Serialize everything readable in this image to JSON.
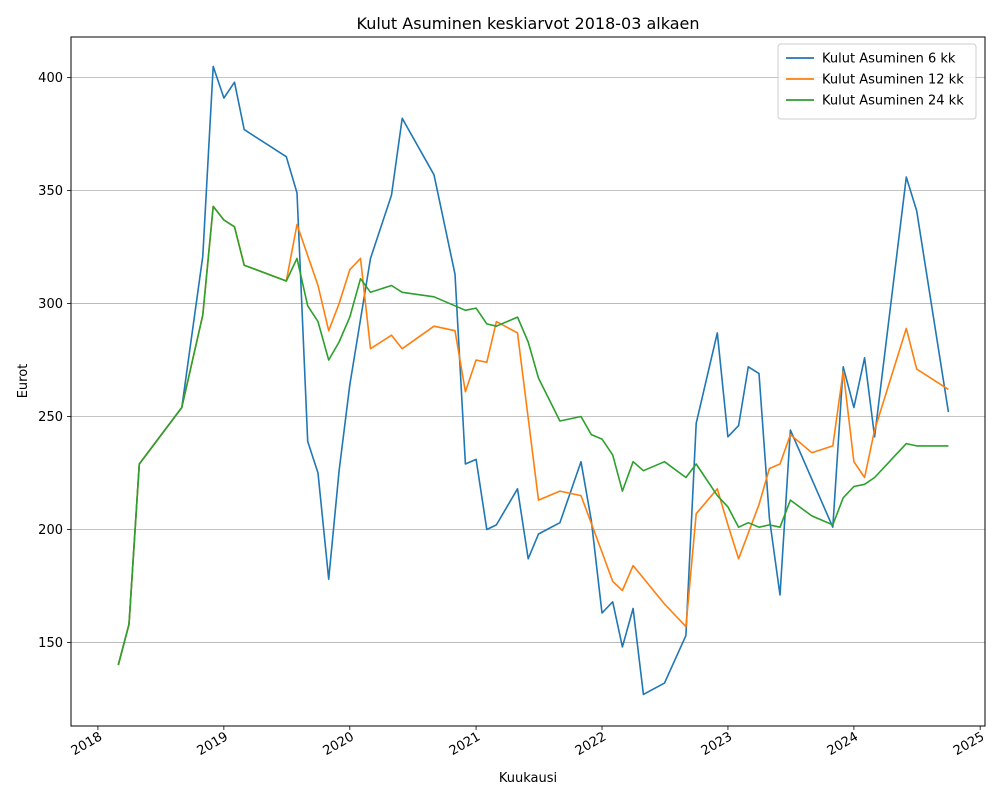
{
  "chart_data": {
    "type": "line",
    "title": "Kulut Asuminen keskiarvot 2018-03 alkaen",
    "xlabel": "Kuukausi",
    "ylabel": "Eurot",
    "xlim": [
      "2017-10-15",
      "2025-01-15"
    ],
    "ylim": [
      113,
      418
    ],
    "x_ticks": [
      "2018",
      "2019",
      "2020",
      "2021",
      "2022",
      "2023",
      "2024",
      "2025"
    ],
    "y_ticks": [
      150,
      200,
      250,
      300,
      350,
      400
    ],
    "grid": "horizontal",
    "legend_position": "upper-right",
    "series": [
      {
        "name": "Kulut Asuminen 6 kk",
        "color": "#1f77b4",
        "points": [
          [
            "2018-03",
            140
          ],
          [
            "2018-04",
            158
          ],
          [
            "2018-05",
            229
          ],
          [
            "2018-09",
            254
          ],
          [
            "2018-11",
            321
          ],
          [
            "2018-12",
            405
          ],
          [
            "2019-01",
            391
          ],
          [
            "2019-02",
            398
          ],
          [
            "2019-03",
            377
          ],
          [
            "2019-07",
            365
          ],
          [
            "2019-08",
            349
          ],
          [
            "2019-09",
            239
          ],
          [
            "2019-10",
            225
          ],
          [
            "2019-11",
            178
          ],
          [
            "2019-12",
            226
          ],
          [
            "2020-01",
            264
          ],
          [
            "2020-03",
            320
          ],
          [
            "2020-05",
            348
          ],
          [
            "2020-06",
            382
          ],
          [
            "2020-09",
            357
          ],
          [
            "2020-11",
            313
          ],
          [
            "2020-12",
            229
          ],
          [
            "2021-01",
            231
          ],
          [
            "2021-02",
            200
          ],
          [
            "2021-03",
            202
          ],
          [
            "2021-05",
            218
          ],
          [
            "2021-06",
            187
          ],
          [
            "2021-07",
            198
          ],
          [
            "2021-09",
            203
          ],
          [
            "2021-11",
            230
          ],
          [
            "2021-12",
            204
          ],
          [
            "2022-01",
            163
          ],
          [
            "2022-02",
            168
          ],
          [
            "2022-03",
            148
          ],
          [
            "2022-04",
            165
          ],
          [
            "2022-05",
            127
          ],
          [
            "2022-07",
            132
          ],
          [
            "2022-09",
            153
          ],
          [
            "2022-10",
            247
          ],
          [
            "2022-12",
            287
          ],
          [
            "2023-01",
            241
          ],
          [
            "2023-02",
            246
          ],
          [
            "2023-03",
            272
          ],
          [
            "2023-04",
            269
          ],
          [
            "2023-05",
            205
          ],
          [
            "2023-06",
            171
          ],
          [
            "2023-07",
            244
          ],
          [
            "2023-11",
            201
          ],
          [
            "2023-12",
            272
          ],
          [
            "2024-01",
            254
          ],
          [
            "2024-02",
            276
          ],
          [
            "2024-03",
            241
          ],
          [
            "2024-06",
            356
          ],
          [
            "2024-07",
            341
          ],
          [
            "2024-10",
            252
          ]
        ]
      },
      {
        "name": "Kulut Asuminen 12 kk",
        "color": "#ff7f0e",
        "points": [
          [
            "2018-03",
            140
          ],
          [
            "2018-04",
            158
          ],
          [
            "2018-05",
            229
          ],
          [
            "2018-09",
            254
          ],
          [
            "2018-11",
            295
          ],
          [
            "2018-12",
            343
          ],
          [
            "2019-01",
            337
          ],
          [
            "2019-02",
            334
          ],
          [
            "2019-03",
            317
          ],
          [
            "2019-07",
            310
          ],
          [
            "2019-08",
            335
          ],
          [
            "2019-10",
            308
          ],
          [
            "2019-11",
            288
          ],
          [
            "2019-12",
            300
          ],
          [
            "2020-01",
            315
          ],
          [
            "2020-02",
            320
          ],
          [
            "2020-03",
            280
          ],
          [
            "2020-05",
            286
          ],
          [
            "2020-06",
            280
          ],
          [
            "2020-09",
            290
          ],
          [
            "2020-11",
            288
          ],
          [
            "2020-12",
            261
          ],
          [
            "2021-01",
            275
          ],
          [
            "2021-02",
            274
          ],
          [
            "2021-03",
            292
          ],
          [
            "2021-05",
            287
          ],
          [
            "2021-07",
            213
          ],
          [
            "2021-09",
            217
          ],
          [
            "2021-11",
            215
          ],
          [
            "2022-01",
            190
          ],
          [
            "2022-02",
            177
          ],
          [
            "2022-03",
            173
          ],
          [
            "2022-04",
            184
          ],
          [
            "2022-07",
            167
          ],
          [
            "2022-09",
            157
          ],
          [
            "2022-10",
            207
          ],
          [
            "2022-12",
            218
          ],
          [
            "2023-01",
            202
          ],
          [
            "2023-02",
            187
          ],
          [
            "2023-04",
            211
          ],
          [
            "2023-05",
            227
          ],
          [
            "2023-06",
            229
          ],
          [
            "2023-07",
            242
          ],
          [
            "2023-09",
            234
          ],
          [
            "2023-11",
            237
          ],
          [
            "2023-12",
            270
          ],
          [
            "2024-01",
            230
          ],
          [
            "2024-02",
            223
          ],
          [
            "2024-03",
            244
          ],
          [
            "2024-06",
            289
          ],
          [
            "2024-07",
            271
          ],
          [
            "2024-10",
            262
          ]
        ]
      },
      {
        "name": "Kulut Asuminen 24 kk",
        "color": "#2ca02c",
        "points": [
          [
            "2018-03",
            140
          ],
          [
            "2018-04",
            158
          ],
          [
            "2018-05",
            229
          ],
          [
            "2018-09",
            254
          ],
          [
            "2018-11",
            295
          ],
          [
            "2018-12",
            343
          ],
          [
            "2019-01",
            337
          ],
          [
            "2019-02",
            334
          ],
          [
            "2019-03",
            317
          ],
          [
            "2019-07",
            310
          ],
          [
            "2019-08",
            320
          ],
          [
            "2019-09",
            299
          ],
          [
            "2019-10",
            292
          ],
          [
            "2019-11",
            275
          ],
          [
            "2019-12",
            283
          ],
          [
            "2020-01",
            294
          ],
          [
            "2020-02",
            311
          ],
          [
            "2020-03",
            305
          ],
          [
            "2020-05",
            308
          ],
          [
            "2020-06",
            305
          ],
          [
            "2020-09",
            303
          ],
          [
            "2020-11",
            299
          ],
          [
            "2020-12",
            297
          ],
          [
            "2021-01",
            298
          ],
          [
            "2021-02",
            291
          ],
          [
            "2021-03",
            290
          ],
          [
            "2021-05",
            294
          ],
          [
            "2021-06",
            283
          ],
          [
            "2021-07",
            267
          ],
          [
            "2021-09",
            248
          ],
          [
            "2021-11",
            250
          ],
          [
            "2021-12",
            242
          ],
          [
            "2022-01",
            240
          ],
          [
            "2022-02",
            233
          ],
          [
            "2022-03",
            217
          ],
          [
            "2022-04",
            230
          ],
          [
            "2022-05",
            226
          ],
          [
            "2022-07",
            230
          ],
          [
            "2022-09",
            223
          ],
          [
            "2022-10",
            229
          ],
          [
            "2022-12",
            215
          ],
          [
            "2023-01",
            210
          ],
          [
            "2023-02",
            201
          ],
          [
            "2023-03",
            203
          ],
          [
            "2023-04",
            201
          ],
          [
            "2023-05",
            202
          ],
          [
            "2023-06",
            201
          ],
          [
            "2023-07",
            213
          ],
          [
            "2023-09",
            206
          ],
          [
            "2023-11",
            202
          ],
          [
            "2023-12",
            214
          ],
          [
            "2024-01",
            219
          ],
          [
            "2024-02",
            220
          ],
          [
            "2024-03",
            223
          ],
          [
            "2024-06",
            238
          ],
          [
            "2024-07",
            237
          ],
          [
            "2024-10",
            237
          ]
        ]
      }
    ]
  }
}
